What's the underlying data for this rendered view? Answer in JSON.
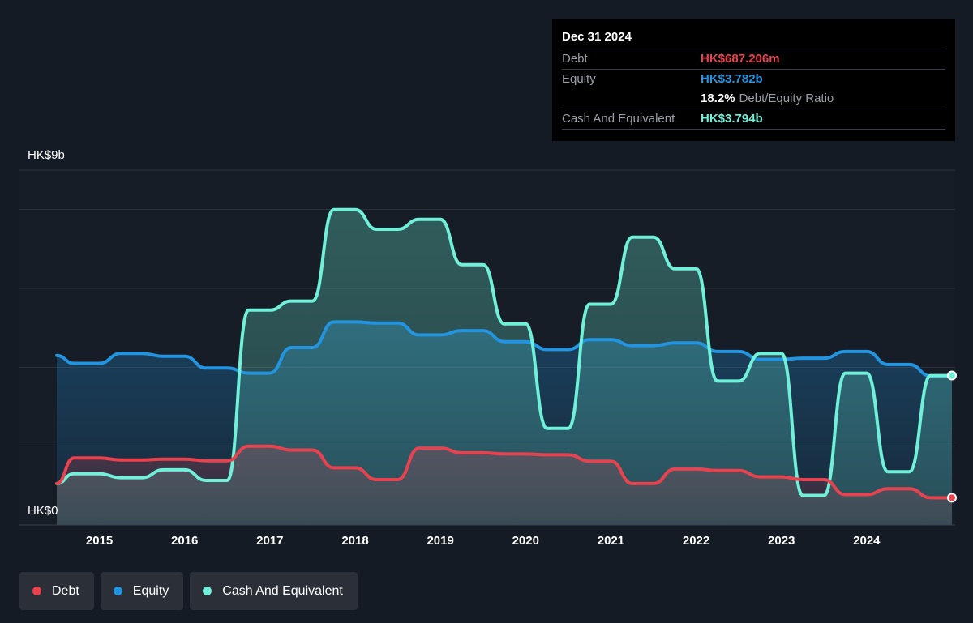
{
  "tooltip": {
    "date": "Dec 31 2024",
    "debt_label": "Debt",
    "debt_value": "HK$687.206m",
    "equity_label": "Equity",
    "equity_value": "HK$3.782b",
    "ratio_value": "18.2%",
    "ratio_label": "Debt/Equity Ratio",
    "cash_label": "Cash And Equivalent",
    "cash_value": "HK$3.794b"
  },
  "legend": {
    "debt": "Debt",
    "equity": "Equity",
    "cash": "Cash And Equivalent"
  },
  "colors": {
    "debt": "#e8424f",
    "equity": "#2394df",
    "cash": "#70f0d8",
    "background": "#151b24"
  },
  "chart_data": {
    "type": "area",
    "ylabel_top": "HK$9b",
    "ylabel_bottom": "HK$0",
    "ylim": [
      0,
      9
    ],
    "xlim": [
      2014.5,
      2025.0
    ],
    "x_ticks": [
      2015,
      2016,
      2017,
      2018,
      2019,
      2020,
      2021,
      2022,
      2023,
      2024
    ],
    "grid": true,
    "legend_position": "bottom-left",
    "series": [
      {
        "name": "Debt",
        "x": [
          2014.5,
          2014.7,
          2015.0,
          2015.25,
          2015.5,
          2015.75,
          2016.0,
          2016.25,
          2016.5,
          2016.75,
          2017.0,
          2017.25,
          2017.5,
          2017.75,
          2018.0,
          2018.25,
          2018.5,
          2018.75,
          2019.0,
          2019.25,
          2019.5,
          2019.75,
          2020.0,
          2020.25,
          2020.5,
          2020.75,
          2021.0,
          2021.25,
          2021.5,
          2021.75,
          2022.0,
          2022.25,
          2022.5,
          2022.75,
          2023.0,
          2023.25,
          2023.5,
          2023.75,
          2024.0,
          2024.25,
          2024.5,
          2024.75,
          2025.0
        ],
        "values": [
          1.05,
          1.7,
          1.7,
          1.65,
          1.65,
          1.67,
          1.67,
          1.63,
          1.63,
          2.0,
          2.0,
          1.9,
          1.9,
          1.45,
          1.45,
          1.15,
          1.15,
          1.95,
          1.95,
          1.83,
          1.83,
          1.8,
          1.8,
          1.78,
          1.78,
          1.62,
          1.62,
          1.05,
          1.05,
          1.42,
          1.42,
          1.38,
          1.38,
          1.22,
          1.22,
          1.15,
          1.15,
          0.77,
          0.77,
          0.92,
          0.92,
          0.69,
          0.69
        ]
      },
      {
        "name": "Equity",
        "x": [
          2014.5,
          2014.7,
          2015.0,
          2015.25,
          2015.5,
          2015.75,
          2016.0,
          2016.25,
          2016.5,
          2016.75,
          2017.0,
          2017.25,
          2017.5,
          2017.75,
          2018.0,
          2018.25,
          2018.5,
          2018.75,
          2019.0,
          2019.25,
          2019.5,
          2019.75,
          2020.0,
          2020.25,
          2020.5,
          2020.75,
          2021.0,
          2021.25,
          2021.5,
          2021.75,
          2022.0,
          2022.25,
          2022.5,
          2022.75,
          2023.0,
          2023.25,
          2023.5,
          2023.75,
          2024.0,
          2024.25,
          2024.5,
          2024.75,
          2025.0
        ],
        "values": [
          4.3,
          4.1,
          4.1,
          4.35,
          4.35,
          4.28,
          4.28,
          3.98,
          3.98,
          3.85,
          3.85,
          4.5,
          4.5,
          5.15,
          5.15,
          5.12,
          5.12,
          4.82,
          4.82,
          4.93,
          4.93,
          4.65,
          4.65,
          4.45,
          4.45,
          4.7,
          4.7,
          4.55,
          4.55,
          4.62,
          4.62,
          4.4,
          4.4,
          4.2,
          4.2,
          4.23,
          4.23,
          4.4,
          4.4,
          4.07,
          4.07,
          3.78,
          3.78
        ]
      },
      {
        "name": "Cash And Equivalent",
        "x": [
          2014.5,
          2014.7,
          2015.0,
          2015.25,
          2015.5,
          2015.75,
          2016.0,
          2016.25,
          2016.5,
          2016.75,
          2017.0,
          2017.25,
          2017.5,
          2017.75,
          2018.0,
          2018.25,
          2018.5,
          2018.75,
          2019.0,
          2019.25,
          2019.5,
          2019.75,
          2020.0,
          2020.25,
          2020.5,
          2020.75,
          2021.0,
          2021.25,
          2021.5,
          2021.75,
          2022.0,
          2022.25,
          2022.5,
          2022.75,
          2023.0,
          2023.25,
          2023.5,
          2023.75,
          2024.0,
          2024.25,
          2024.5,
          2024.75,
          2025.0
        ],
        "values": [
          1.05,
          1.3,
          1.3,
          1.2,
          1.2,
          1.4,
          1.4,
          1.13,
          1.13,
          5.45,
          5.45,
          5.68,
          5.68,
          8.0,
          8.0,
          7.5,
          7.5,
          7.75,
          7.75,
          6.6,
          6.6,
          5.1,
          5.1,
          2.45,
          2.45,
          5.6,
          5.6,
          7.3,
          7.3,
          6.5,
          6.5,
          3.65,
          3.65,
          4.35,
          4.35,
          0.75,
          0.75,
          3.85,
          3.85,
          1.35,
          1.35,
          3.79,
          3.79
        ]
      }
    ]
  }
}
